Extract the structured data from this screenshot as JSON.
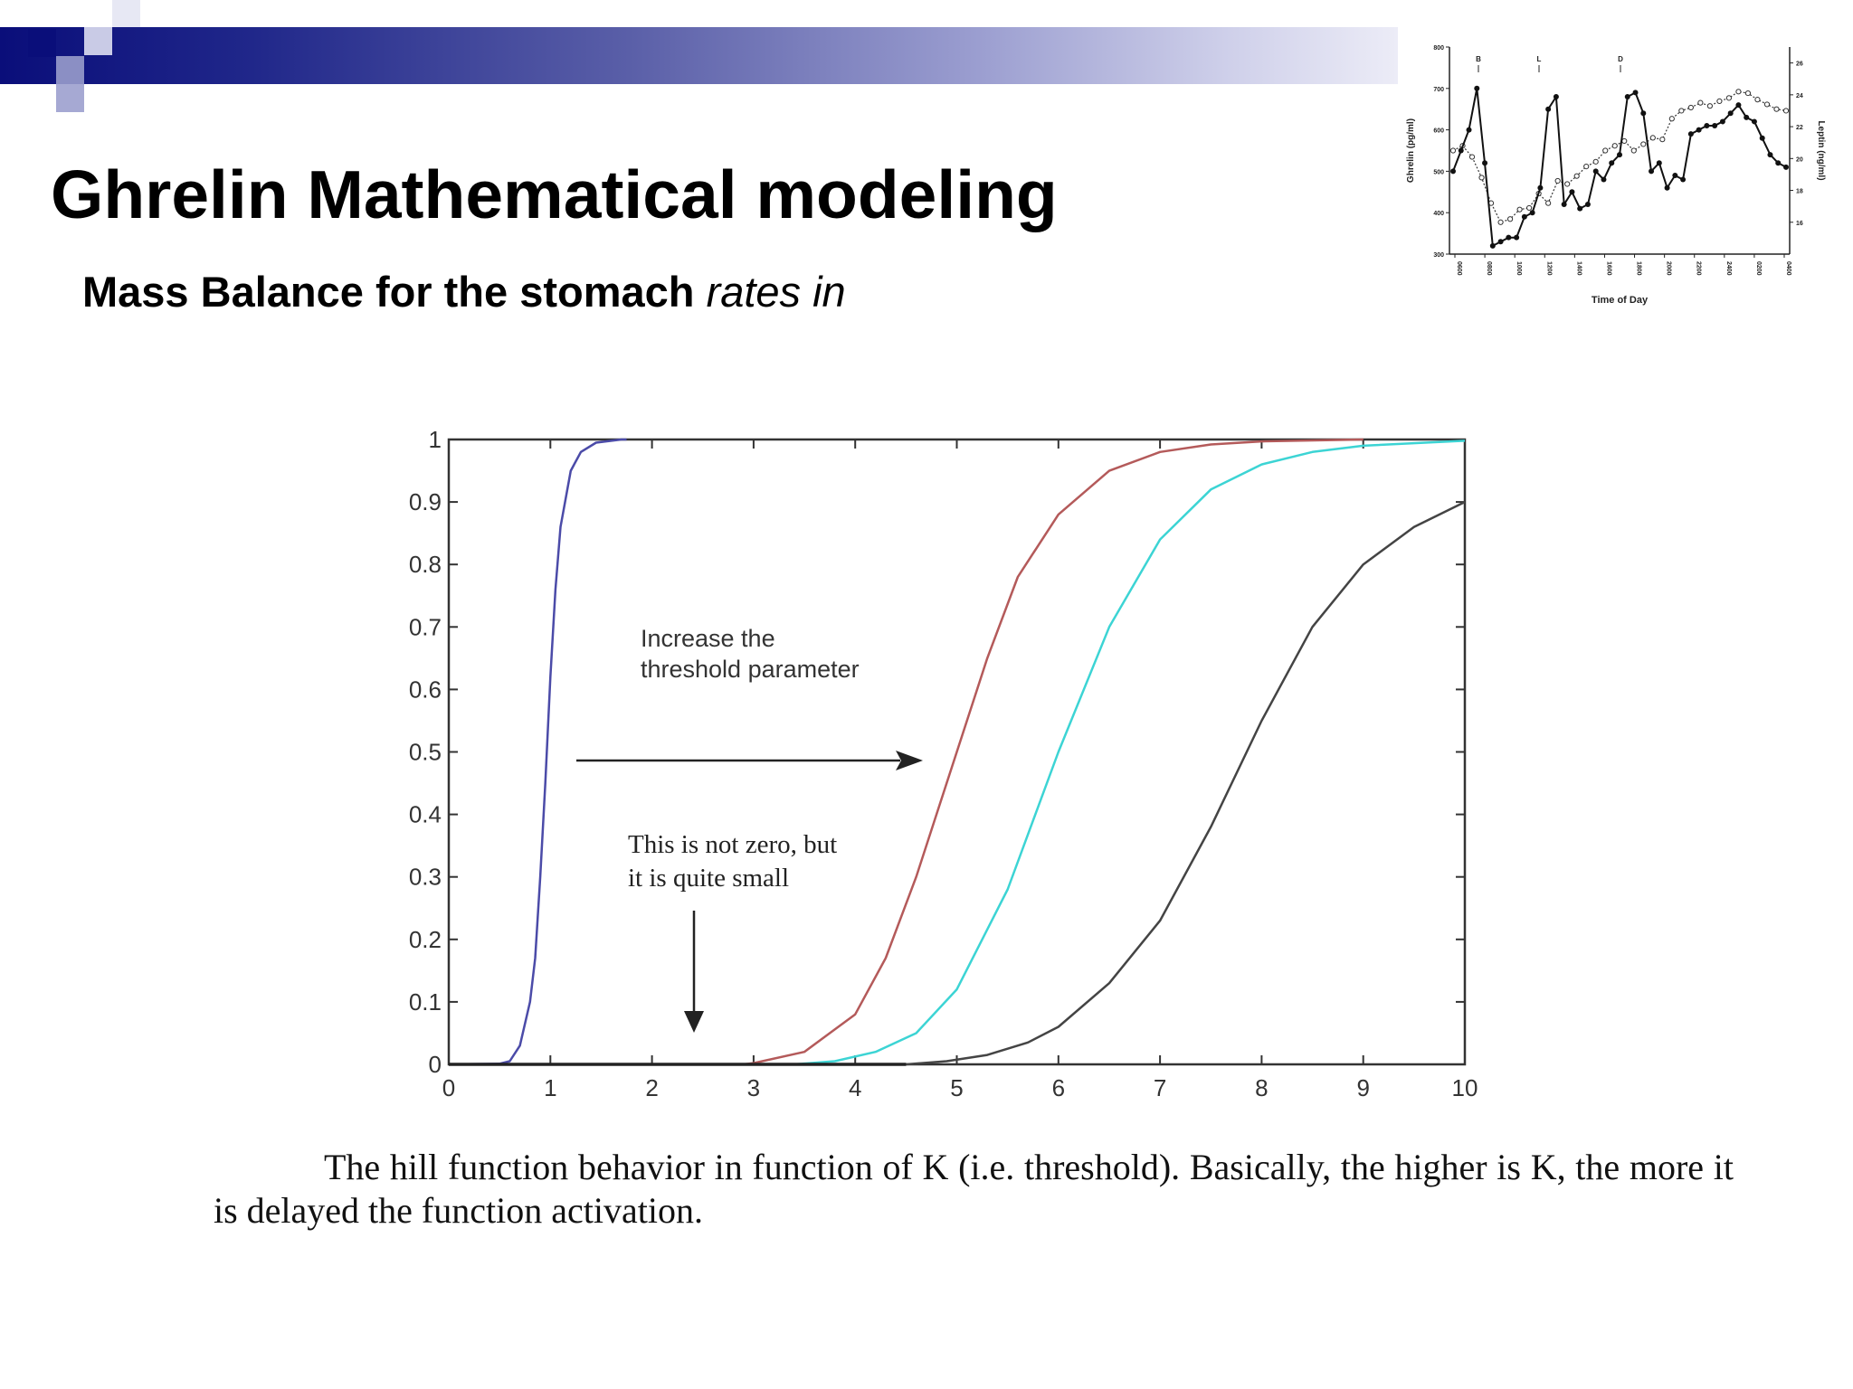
{
  "slide": {
    "title": "Ghrelin Mathematical modeling",
    "subtitle_bold": "Mass Balance for the stomach",
    "subtitle_italic": "rates in",
    "caption": "The hill function behavior in function of K (i.e. threshold). Basically, the higher is K, the more it is delayed the function activation.",
    "colors": {
      "banner_dark": "#0a0e7a",
      "banner_light": "#ececf7",
      "square_dark": "#0a0e7a",
      "square_mid": "#8b8fc4",
      "square_light": "#c9cbe6"
    }
  },
  "chart_data": [
    {
      "type": "line",
      "title": "",
      "xlabel": "",
      "ylabel": "",
      "xlim": [
        0,
        10
      ],
      "ylim": [
        0,
        1
      ],
      "x_ticks": [
        "0",
        "1",
        "2",
        "3",
        "4",
        "5",
        "6",
        "7",
        "8",
        "9",
        "10"
      ],
      "y_ticks": [
        "0",
        "0.1",
        "0.2",
        "0.3",
        "0.4",
        "0.5",
        "0.6",
        "0.7",
        "0.8",
        "0.9",
        "1"
      ],
      "grid": false,
      "series": [
        {
          "color": "#4b4ba8",
          "points": [
            [
              0,
              0
            ],
            [
              0.5,
              0.001
            ],
            [
              0.6,
              0.005
            ],
            [
              0.7,
              0.03
            ],
            [
              0.8,
              0.1
            ],
            [
              0.85,
              0.17
            ],
            [
              0.9,
              0.3
            ],
            [
              0.95,
              0.45
            ],
            [
              1.0,
              0.62
            ],
            [
              1.05,
              0.76
            ],
            [
              1.1,
              0.86
            ],
            [
              1.2,
              0.95
            ],
            [
              1.3,
              0.98
            ],
            [
              1.45,
              0.995
            ],
            [
              1.7,
              1.0
            ],
            [
              1.75,
              1.0
            ]
          ]
        },
        {
          "color": "#b45a5a",
          "points": [
            [
              0,
              0
            ],
            [
              2.9,
              0
            ],
            [
              3.0,
              0.002
            ],
            [
              3.5,
              0.02
            ],
            [
              4.0,
              0.08
            ],
            [
              4.3,
              0.17
            ],
            [
              4.6,
              0.3
            ],
            [
              5.0,
              0.5
            ],
            [
              5.3,
              0.65
            ],
            [
              5.6,
              0.78
            ],
            [
              6.0,
              0.88
            ],
            [
              6.5,
              0.95
            ],
            [
              7.0,
              0.98
            ],
            [
              7.5,
              0.992
            ],
            [
              8.0,
              0.997
            ],
            [
              9.0,
              1.0
            ]
          ]
        },
        {
          "color": "#3cd4d4",
          "points": [
            [
              0,
              0
            ],
            [
              3.4,
              0
            ],
            [
              3.8,
              0.005
            ],
            [
              4.2,
              0.02
            ],
            [
              4.6,
              0.05
            ],
            [
              5.0,
              0.12
            ],
            [
              5.5,
              0.28
            ],
            [
              6.0,
              0.5
            ],
            [
              6.5,
              0.7
            ],
            [
              7.0,
              0.84
            ],
            [
              7.5,
              0.92
            ],
            [
              8.0,
              0.96
            ],
            [
              8.5,
              0.98
            ],
            [
              9.0,
              0.99
            ],
            [
              10.0,
              0.998
            ]
          ]
        },
        {
          "color": "#444444",
          "points": [
            [
              0,
              0
            ],
            [
              4.5,
              0
            ],
            [
              4.9,
              0.005
            ],
            [
              5.3,
              0.015
            ],
            [
              5.7,
              0.035
            ],
            [
              6.0,
              0.06
            ],
            [
              6.5,
              0.13
            ],
            [
              7.0,
              0.23
            ],
            [
              7.5,
              0.38
            ],
            [
              8.0,
              0.55
            ],
            [
              8.5,
              0.7
            ],
            [
              9.0,
              0.8
            ],
            [
              9.5,
              0.86
            ],
            [
              10.0,
              0.9
            ]
          ]
        },
        {
          "color": "#222222",
          "points": [
            [
              0,
              0
            ],
            [
              4.5,
              0
            ]
          ]
        }
      ],
      "annotations": [
        {
          "line1": "Increase the",
          "line2": "threshold parameter"
        },
        {
          "line1": "This is not zero, but",
          "line2": "it is quite small"
        }
      ]
    },
    {
      "type": "line",
      "title": "",
      "xlabel": "Time of Day",
      "ylabel": "Ghrelin (pg/ml)",
      "y2label": "Leptin (ng/ml)",
      "ylim": [
        300,
        800
      ],
      "y2lim": [
        14,
        27
      ],
      "y_ticks": [
        "300",
        "400",
        "500",
        "600",
        "700",
        "800"
      ],
      "y2_ticks": [
        "16",
        "18",
        "20",
        "22",
        "24",
        "26"
      ],
      "x_ticks": [
        "0600",
        "0800",
        "1000",
        "1200",
        "1400",
        "1600",
        "1800",
        "2000",
        "2200",
        "2400",
        "0200",
        "0400"
      ],
      "meal_markers": [
        "B",
        "L",
        "D"
      ],
      "series": [
        {
          "style": "solid-filled",
          "values": [
            500,
            550,
            600,
            700,
            520,
            320,
            330,
            340,
            340,
            390,
            400,
            460,
            650,
            680,
            420,
            450,
            410,
            420,
            500,
            480,
            520,
            540,
            680,
            690,
            640,
            500,
            520,
            460,
            490,
            480,
            590,
            600,
            610,
            610,
            620,
            640,
            660,
            630,
            620,
            580,
            540,
            520,
            510
          ]
        },
        {
          "style": "dotted-open",
          "values": [
            20.5,
            20.8,
            20.1,
            18.8,
            17.2,
            16.0,
            16.2,
            16.8,
            16.9,
            17.8,
            17.2,
            18.6,
            18.4,
            18.9,
            19.5,
            19.8,
            20.5,
            20.8,
            21.1,
            20.5,
            20.9,
            21.3,
            21.2,
            22.5,
            23.0,
            23.2,
            23.5,
            23.3,
            23.6,
            23.8,
            24.2,
            24.1,
            23.7,
            23.4,
            23.1,
            23.0
          ]
        }
      ]
    }
  ]
}
